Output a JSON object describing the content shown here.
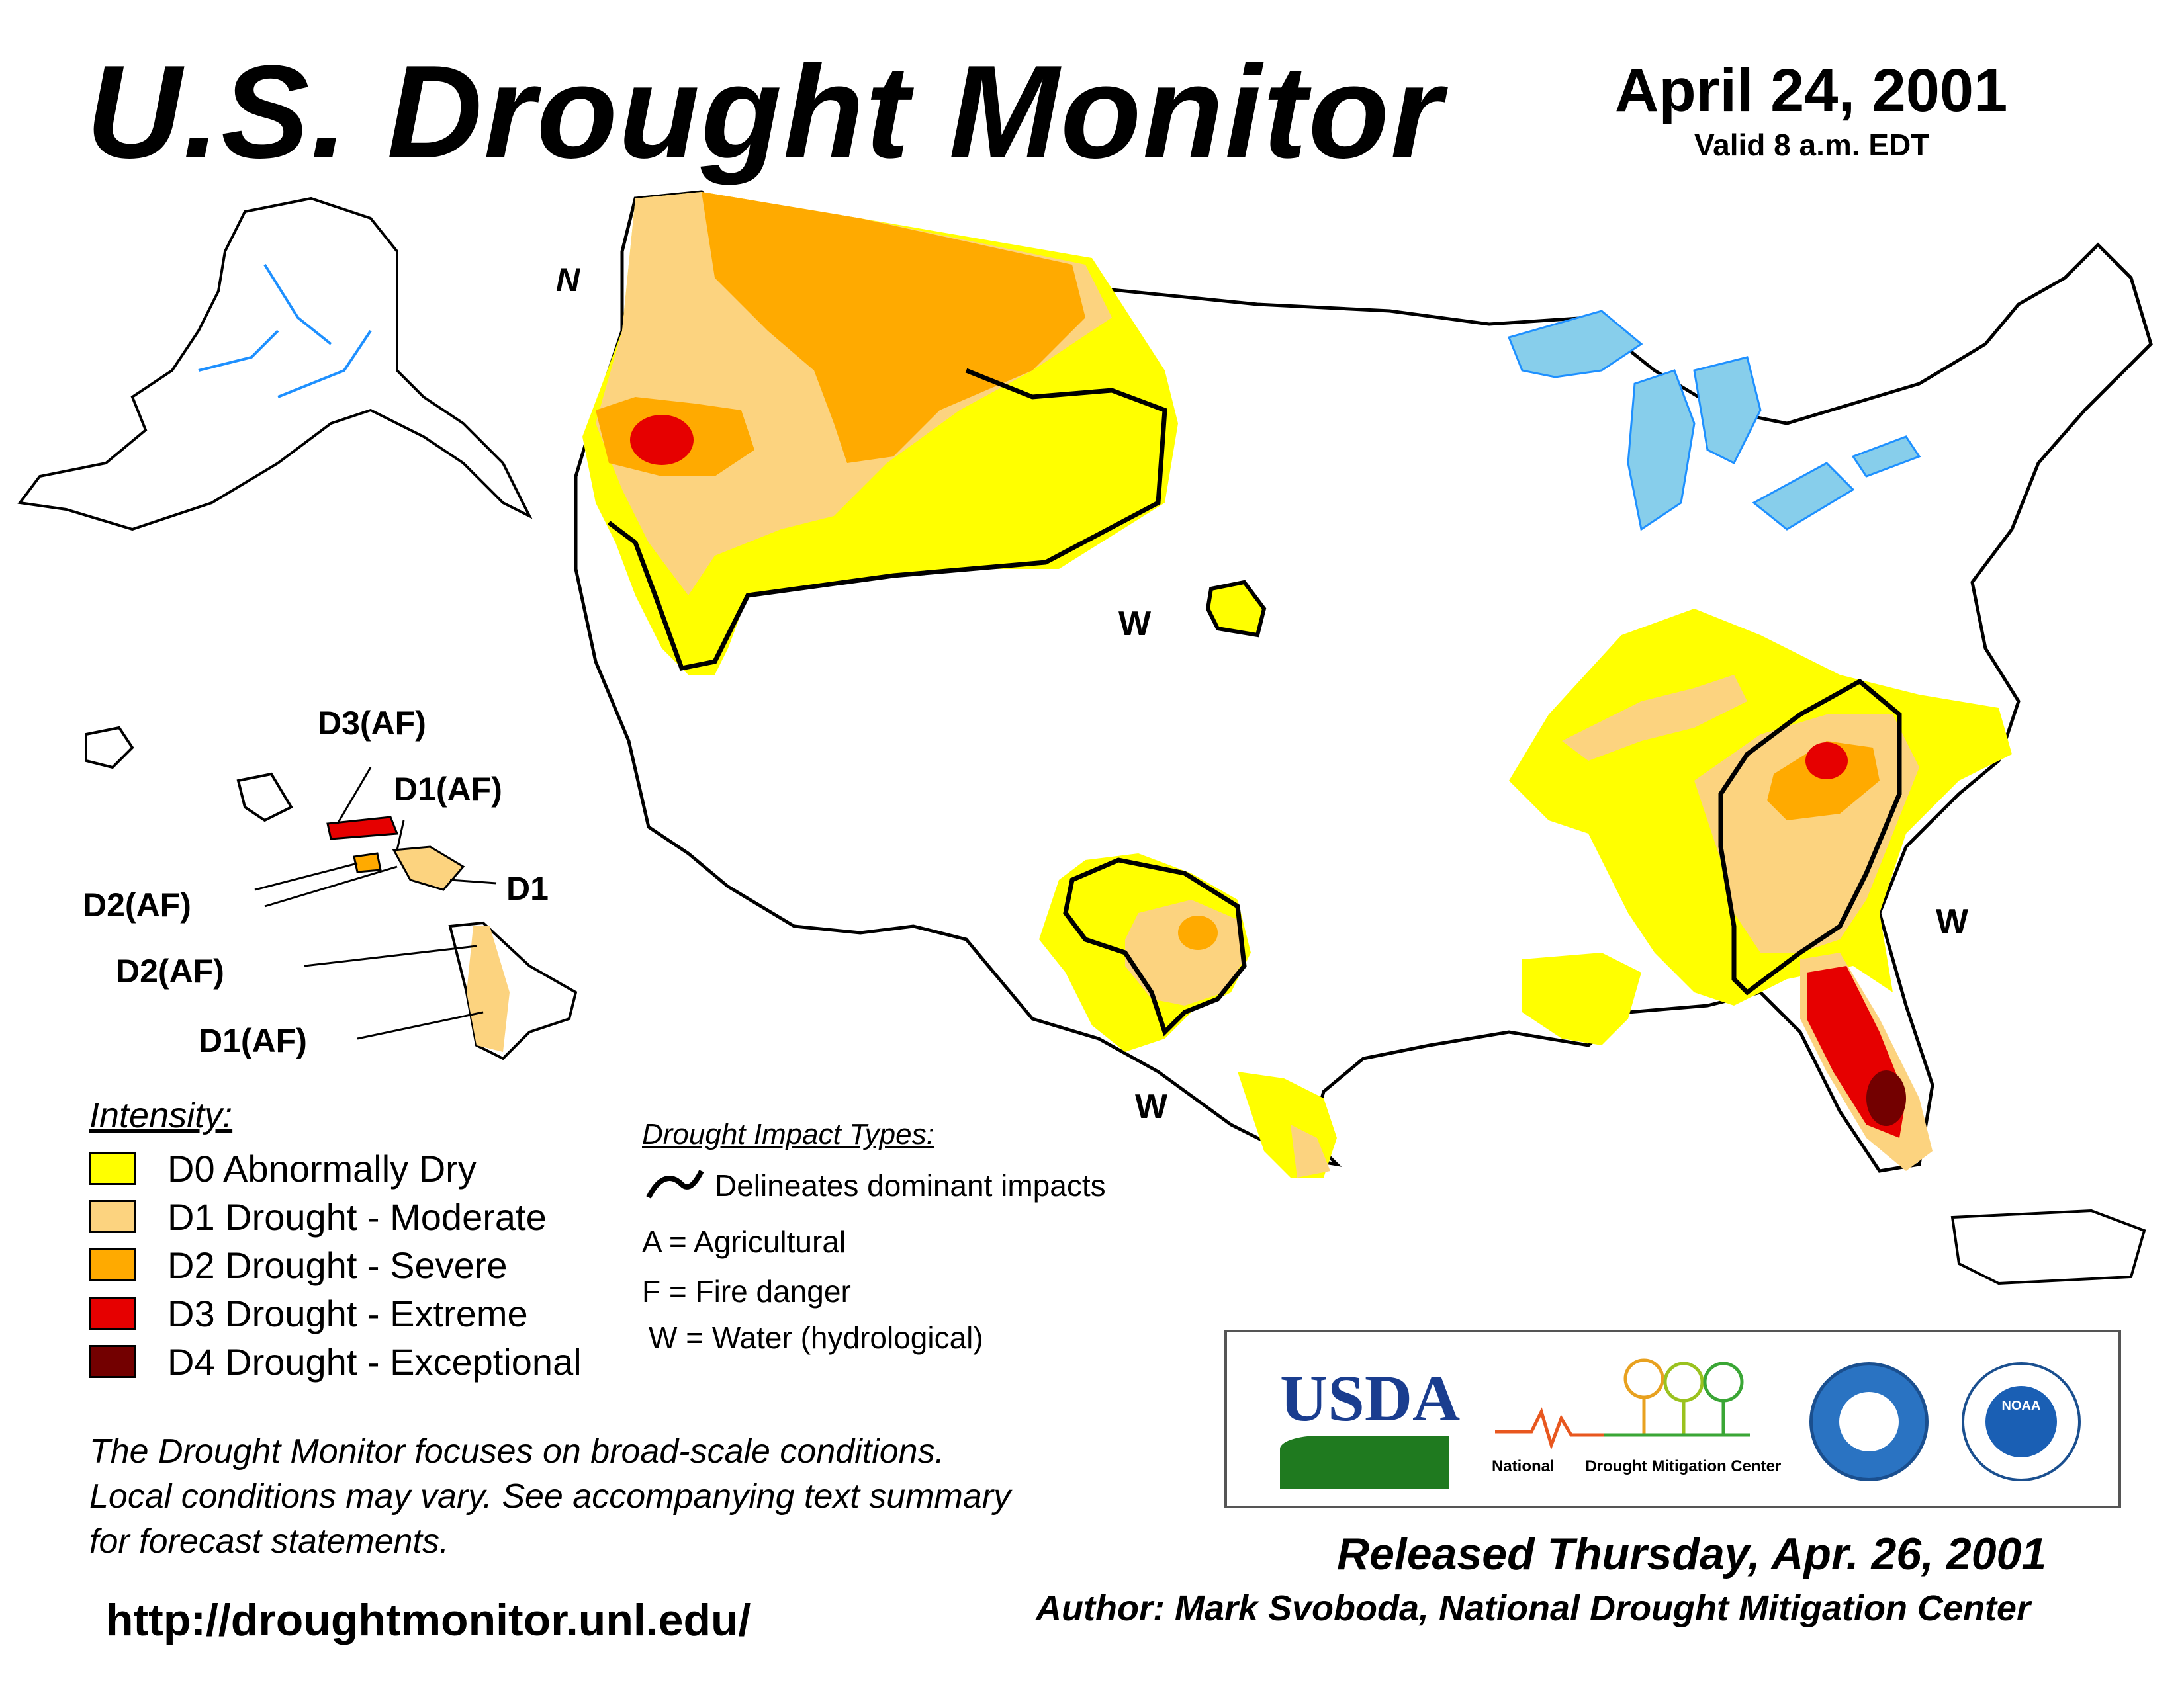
{
  "header": {
    "title": "U.S. Drought Monitor",
    "date": "April 24, 2001",
    "valid": "Valid 8 a.m. EDT"
  },
  "map": {
    "north_label": "N",
    "impact_labels": [
      "W",
      "W",
      "W"
    ],
    "hawaii_labels": [
      "D3(AF)",
      "D1(AF)",
      "D1",
      "D2(AF)",
      "D2(AF)",
      "D1(AF)"
    ]
  },
  "legend": {
    "heading": "Intensity:",
    "items": [
      {
        "label": "D0 Abnormally Dry",
        "color": "#ffff00"
      },
      {
        "label": "D1 Drought - Moderate",
        "color": "#fcd37f"
      },
      {
        "label": "D2 Drought - Severe",
        "color": "#ffaa00"
      },
      {
        "label": "D3 Drought - Extreme",
        "color": "#e60000"
      },
      {
        "label": "D4 Drought - Exceptional",
        "color": "#730000"
      }
    ]
  },
  "impacts": {
    "heading": "Drought Impact Types:",
    "delineates": "Delineates dominant impacts",
    "types": [
      "A = Agricultural",
      "F = Fire danger",
      "W = Water (hydrological)"
    ]
  },
  "note": {
    "lines": [
      "The Drought Monitor focuses on broad-scale conditions.",
      "Local conditions may vary. See accompanying text summary",
      "for forecast statements."
    ]
  },
  "footer": {
    "url": "http://droughtmonitor.unl.edu/",
    "released": "Released Thursday, Apr. 26, 2001",
    "author": "Author: Mark Svoboda, National Drought Mitigation Center"
  },
  "logos": {
    "usda": "USDA",
    "ndmc_national": "National",
    "ndmc_rest": "Drought Mitigation Center",
    "noaa": "NOAA"
  }
}
